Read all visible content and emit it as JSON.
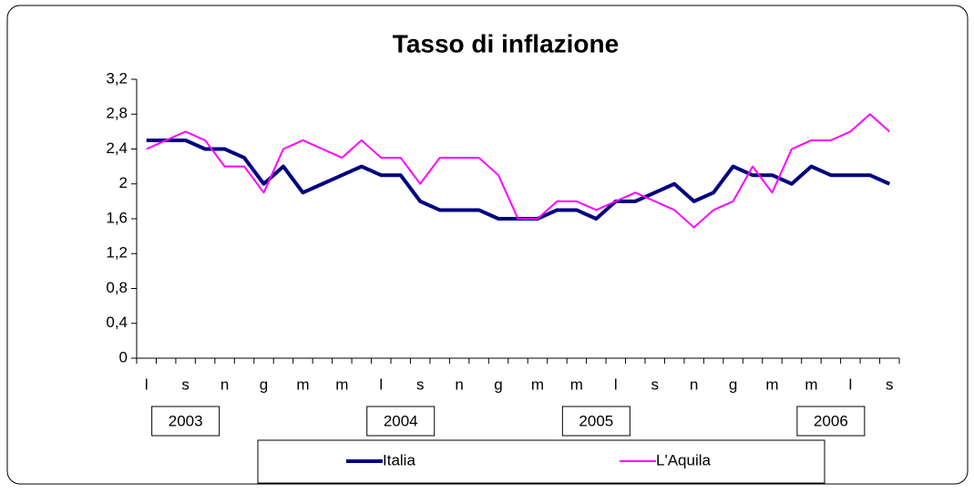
{
  "chart_data": {
    "type": "line",
    "title": "Tasso di inflazione",
    "categories": [
      "l",
      null,
      "s",
      null,
      "n",
      null,
      "g",
      null,
      "m",
      null,
      "m",
      null,
      "l",
      null,
      "s",
      null,
      "n",
      null,
      "g",
      null,
      "m",
      null,
      "m",
      null,
      "l",
      null,
      "s",
      null,
      "n",
      null,
      "g",
      null,
      "m",
      null,
      "m",
      null,
      "l",
      null,
      "s"
    ],
    "annotations": [
      "2003",
      "2004",
      "2005",
      "2006"
    ],
    "series": [
      {
        "name": "Italia",
        "color": "#000080",
        "values": [
          2.5,
          2.5,
          2.5,
          2.4,
          2.4,
          2.3,
          2.0,
          2.2,
          1.9,
          2.0,
          2.1,
          2.2,
          2.1,
          2.1,
          1.8,
          1.7,
          1.7,
          1.7,
          1.6,
          1.6,
          1.6,
          1.7,
          1.7,
          1.6,
          1.8,
          1.8,
          1.9,
          2.0,
          1.8,
          1.9,
          2.2,
          2.1,
          2.1,
          2.0,
          2.2,
          2.1,
          2.1,
          2.1,
          2.0
        ]
      },
      {
        "name": "L'Aquila",
        "color": "#ff00ff",
        "values": [
          2.4,
          2.5,
          2.6,
          2.5,
          2.2,
          2.2,
          1.9,
          2.4,
          2.5,
          2.4,
          2.3,
          2.5,
          2.3,
          2.3,
          2.0,
          2.3,
          2.3,
          2.3,
          2.1,
          1.6,
          1.6,
          1.8,
          1.8,
          1.7,
          1.8,
          1.9,
          1.8,
          1.7,
          1.5,
          1.7,
          1.8,
          2.2,
          1.9,
          2.4,
          2.5,
          2.5,
          2.6,
          2.8,
          2.6
        ]
      }
    ],
    "ylim": [
      0,
      3.2
    ],
    "yticks": [
      0,
      {
        "value": 0.4,
        "label": "0,4"
      },
      {
        "value": 0.8,
        "label": "0,8"
      },
      {
        "value": 1.2,
        "label": "1,2"
      },
      {
        "value": 1.6,
        "label": "1,6"
      },
      2,
      {
        "value": 2.4,
        "label": "2,4"
      },
      {
        "value": 2.8,
        "label": "2,8"
      },
      {
        "value": 3.2,
        "label": "3,2"
      }
    ]
  }
}
